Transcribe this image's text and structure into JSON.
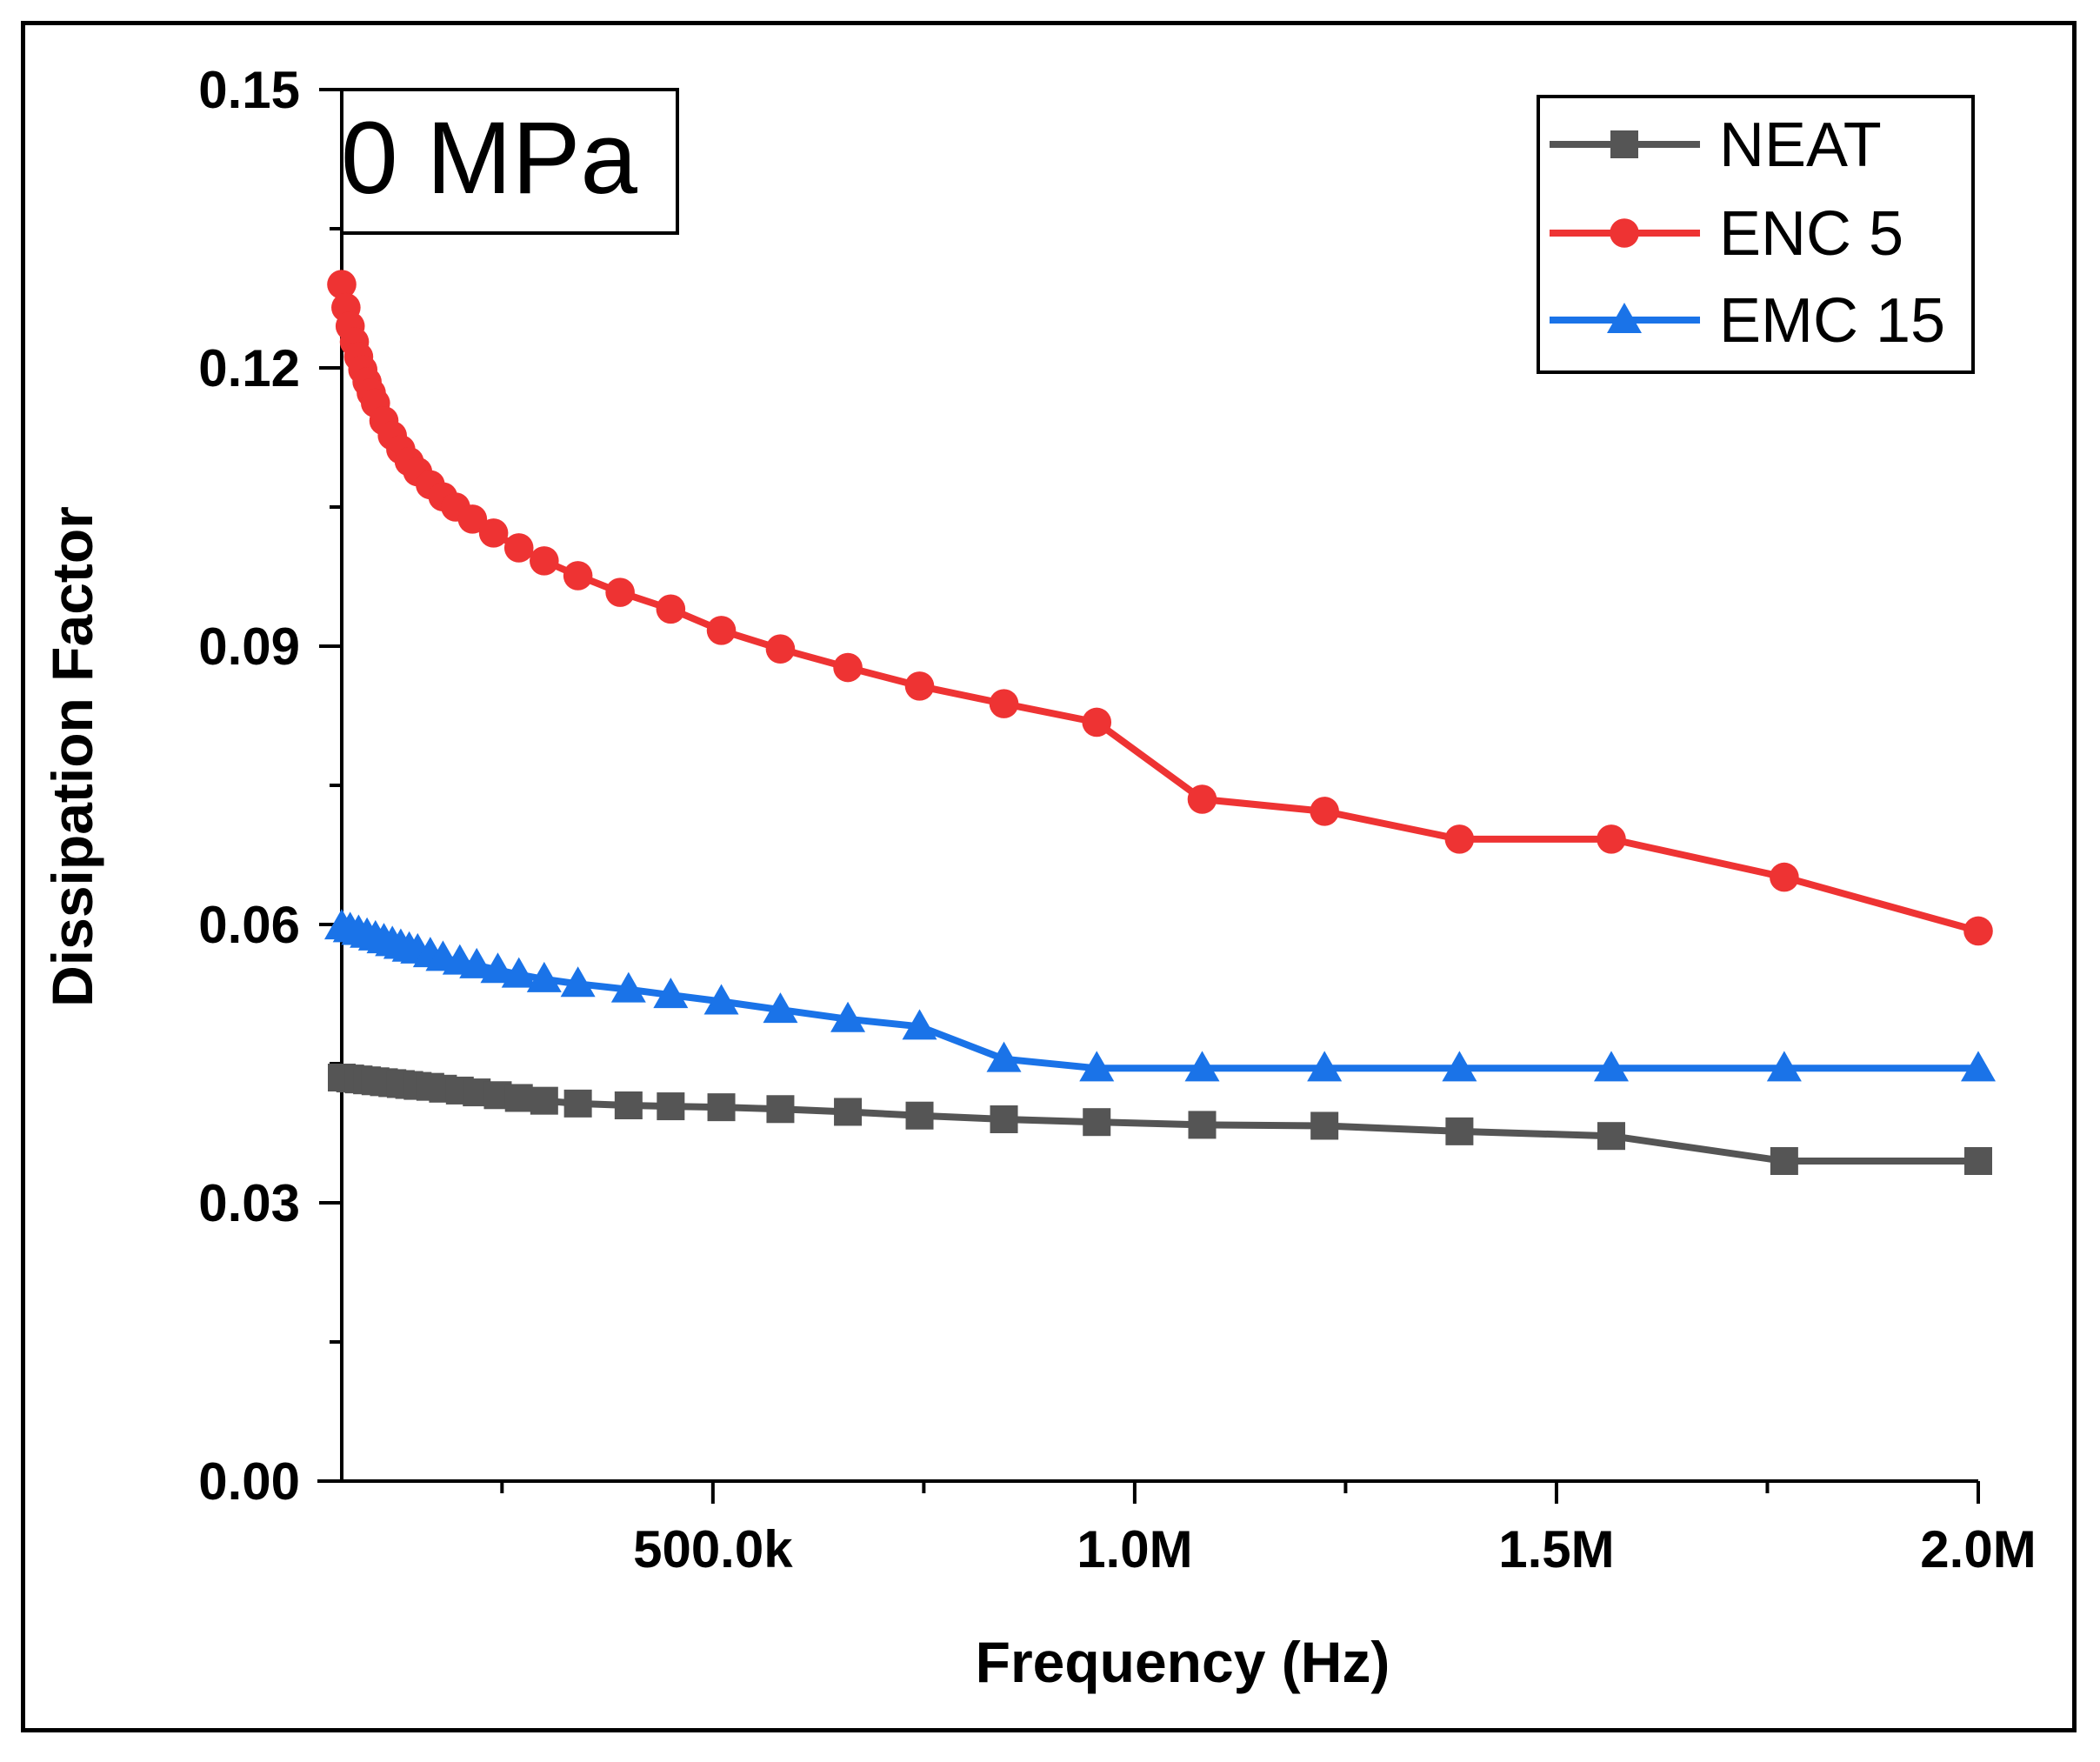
{
  "chart_data": {
    "type": "line",
    "title": "",
    "annotation": "0 MPa",
    "xlabel": "Frequency (Hz)",
    "ylabel": "Dissipation Factor",
    "xlim": [
      60000,
      2000000
    ],
    "ylim": [
      0,
      0.15
    ],
    "x_tick_values": [
      500000,
      1000000,
      1500000,
      2000000
    ],
    "x_tick_labels": [
      "500.0k",
      "1.0M",
      "1.5M",
      "2.0M"
    ],
    "y_tick_values": [
      0,
      0.03,
      0.06,
      0.09,
      0.12,
      0.15
    ],
    "y_tick_labels": [
      "0.00",
      "0.03",
      "0.06",
      "0.09",
      "0.12",
      "0.15"
    ],
    "legend_position": "top-right",
    "series": [
      {
        "name": "NEAT",
        "color": "#555555",
        "marker": "square",
        "x": [
          60000,
          70000,
          80000,
          90000,
          100000,
          110000,
          120000,
          130000,
          140000,
          150000,
          165000,
          180000,
          200000,
          220000,
          245000,
          270000,
          300000,
          340000,
          400000,
          450000,
          510000,
          580000,
          660000,
          745000,
          845000,
          955000,
          1080000,
          1225000,
          1385000,
          1565000,
          1770000,
          2000000
        ],
        "y": [
          0.0435,
          0.0434,
          0.0433,
          0.0432,
          0.0431,
          0.043,
          0.0429,
          0.0428,
          0.0427,
          0.0426,
          0.0425,
          0.0423,
          0.0421,
          0.0419,
          0.0416,
          0.0413,
          0.041,
          0.0407,
          0.0405,
          0.0404,
          0.0403,
          0.0401,
          0.0398,
          0.0394,
          0.039,
          0.0387,
          0.0384,
          0.0383,
          0.0377,
          0.0372,
          0.0345,
          0.0345
        ]
      },
      {
        "name": "ENC 5",
        "color": "#ee3333",
        "marker": "circle",
        "x": [
          60000,
          65000,
          70000,
          75000,
          80000,
          85000,
          90000,
          95000,
          100000,
          110000,
          120000,
          130000,
          140000,
          150000,
          165000,
          180000,
          195000,
          215000,
          240000,
          270000,
          300000,
          340000,
          390000,
          450000,
          510000,
          580000,
          660000,
          745000,
          845000,
          955000,
          1080000,
          1225000,
          1385000,
          1565000,
          1770000,
          2000000
        ],
        "y": [
          0.129,
          0.1265,
          0.1245,
          0.1228,
          0.1212,
          0.1198,
          0.1185,
          0.1173,
          0.1162,
          0.1143,
          0.1127,
          0.1112,
          0.1099,
          0.1088,
          0.1074,
          0.1061,
          0.105,
          0.1037,
          0.1022,
          0.1006,
          0.0992,
          0.0976,
          0.0958,
          0.094,
          0.0917,
          0.0897,
          0.0877,
          0.0857,
          0.0838,
          0.0818,
          0.0735,
          0.0722,
          0.0692,
          0.0692,
          0.0651,
          0.0593
        ]
      },
      {
        "name": "EMC 15",
        "color": "#1a73e8",
        "marker": "triangle",
        "x": [
          60000,
          70000,
          80000,
          90000,
          100000,
          110000,
          120000,
          130000,
          140000,
          150000,
          165000,
          180000,
          200000,
          220000,
          245000,
          270000,
          300000,
          340000,
          400000,
          450000,
          510000,
          580000,
          660000,
          745000,
          845000,
          955000,
          1080000,
          1225000,
          1385000,
          1565000,
          1770000,
          2000000
        ],
        "y": [
          0.0598,
          0.0595,
          0.0592,
          0.0589,
          0.0586,
          0.0583,
          0.058,
          0.0577,
          0.0574,
          0.0572,
          0.0568,
          0.0564,
          0.056,
          0.0556,
          0.0551,
          0.0546,
          0.0541,
          0.0536,
          0.053,
          0.0524,
          0.0517,
          0.0508,
          0.0498,
          0.049,
          0.0455,
          0.0445,
          0.0445,
          0.0445,
          0.0445,
          0.0445,
          0.0445,
          0.0445
        ]
      }
    ]
  }
}
